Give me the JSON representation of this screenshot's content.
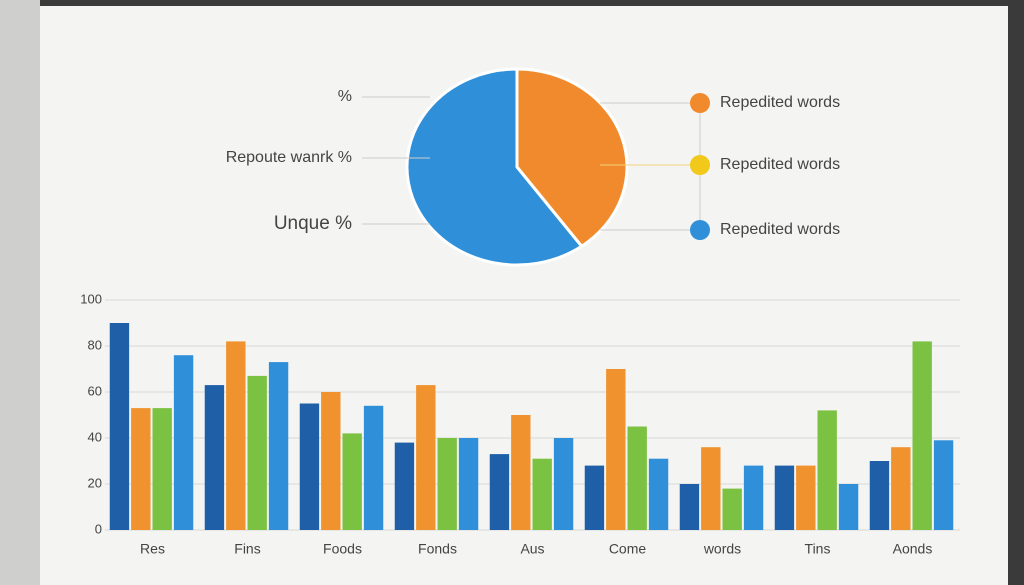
{
  "chart_data": [
    {
      "type": "pie",
      "annotations": [
        "%",
        "Repoute wanrk %",
        "Unque %"
      ],
      "categories": [
        "Repedited words",
        "Repedited words",
        "Repedited words"
      ],
      "values": [
        40,
        0,
        60
      ],
      "colors": [
        "#f08a2c",
        "#f2c81a",
        "#2f8fd8"
      ],
      "legend": "right"
    },
    {
      "type": "bar",
      "categories": [
        "Res",
        "Fins",
        "Foods",
        "Fonds",
        "Aus",
        "Come",
        "words",
        "Tins",
        "Aonds"
      ],
      "series": [
        {
          "color": "#1f5fa8",
          "values": [
            90,
            63,
            55,
            38,
            33,
            28,
            20,
            28,
            30
          ]
        },
        {
          "color": "#f0922e",
          "values": [
            53,
            82,
            60,
            63,
            50,
            70,
            36,
            28,
            36
          ]
        },
        {
          "color": "#7cc242",
          "values": [
            53,
            67,
            42,
            40,
            31,
            45,
            18,
            52,
            82
          ]
        },
        {
          "color": "#2f8fd8",
          "values": [
            76,
            73,
            54,
            40,
            40,
            31,
            28,
            20,
            39
          ]
        }
      ],
      "ylim": [
        0,
        100
      ],
      "yticks": [
        0,
        20,
        40,
        60,
        80,
        100
      ],
      "grid": true
    }
  ]
}
